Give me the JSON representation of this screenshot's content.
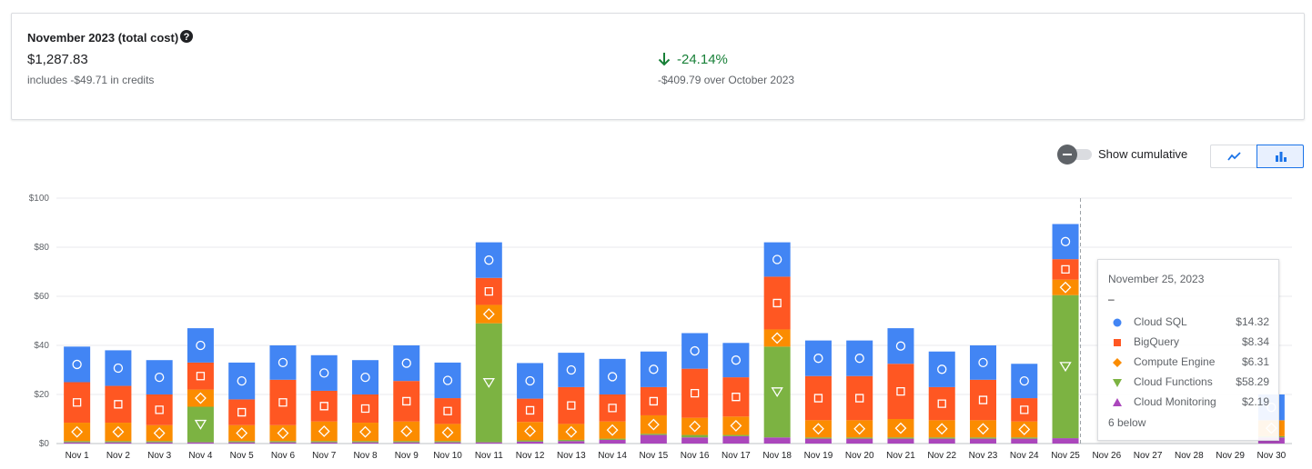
{
  "summary": {
    "title": "November 2023 (total cost)",
    "total": "$1,287.83",
    "credits": "includes -$49.71 in credits",
    "change_pct": "-24.14%",
    "change_amount": "-$409.79 over October 2023"
  },
  "controls": {
    "cumulative_label": "Show cumulative",
    "cumulative_on": false,
    "selected_view": "bar"
  },
  "colors": {
    "Cloud SQL": "#4285f4",
    "BigQuery": "#ff5722",
    "Compute Engine": "#fb8c00",
    "Cloud Functions": "#7cb342",
    "Cloud Monitoring": "#ab47bc",
    "positive_change": "#188038"
  },
  "chart_data": {
    "type": "bar",
    "stacked": true,
    "categories": [
      "Nov 1",
      "Nov 2",
      "Nov 3",
      "Nov 4",
      "Nov 5",
      "Nov 6",
      "Nov 7",
      "Nov 8",
      "Nov 9",
      "Nov 10",
      "Nov 11",
      "Nov 12",
      "Nov 13",
      "Nov 14",
      "Nov 15",
      "Nov 16",
      "Nov 17",
      "Nov 18",
      "Nov 19",
      "Nov 20",
      "Nov 21",
      "Nov 22",
      "Nov 23",
      "Nov 24",
      "Nov 25",
      "Nov 26",
      "Nov 27",
      "Nov 28",
      "Nov 29",
      "Nov 30"
    ],
    "y_ticks": [
      "$0",
      "$20",
      "$40",
      "$60",
      "$80",
      "$100"
    ],
    "ylim": [
      0,
      100
    ],
    "grid": true,
    "series": [
      {
        "name": "Cloud Monitoring",
        "marker": "triangle-up",
        "values": [
          0.5,
          0.5,
          0.5,
          0.5,
          0.5,
          0.5,
          0.5,
          0.5,
          0.5,
          0.5,
          0.5,
          0.8,
          1.0,
          1.5,
          3.5,
          2.5,
          3.0,
          2.5,
          2.0,
          2.0,
          2.0,
          2.0,
          2.0,
          2.0,
          2.19,
          0,
          0,
          0,
          0,
          2.5
        ]
      },
      {
        "name": "Cloud Functions",
        "marker": "triangle-down",
        "values": [
          0.5,
          0.5,
          0.5,
          14.5,
          0.5,
          0.5,
          0.5,
          0.5,
          0.5,
          0.5,
          48.5,
          0.5,
          0.5,
          0.5,
          0.5,
          1.0,
          0.5,
          37.0,
          0.5,
          0.5,
          0.5,
          0.5,
          0.5,
          0.5,
          58.29,
          0,
          0,
          0,
          0,
          0.5
        ]
      },
      {
        "name": "Compute Engine",
        "marker": "diamond",
        "values": [
          7.5,
          7.5,
          6.5,
          7.0,
          6.5,
          6.5,
          8.0,
          7.5,
          8.0,
          7.0,
          7.5,
          7.5,
          6.5,
          7.0,
          7.5,
          7.0,
          7.5,
          7.0,
          7.0,
          7.0,
          7.5,
          7.0,
          7.0,
          6.5,
          6.31,
          0,
          0,
          0,
          0,
          6.5
        ]
      },
      {
        "name": "BigQuery",
        "marker": "square",
        "values": [
          16.5,
          15.0,
          12.5,
          11.0,
          10.5,
          18.5,
          12.5,
          11.5,
          16.5,
          10.5,
          11.0,
          9.5,
          15.0,
          11.0,
          11.5,
          20.0,
          16.0,
          21.5,
          18.0,
          18.0,
          22.5,
          13.5,
          16.5,
          9.5,
          8.34,
          0,
          0,
          0,
          0,
          0
        ]
      },
      {
        "name": "Cloud SQL",
        "marker": "circle",
        "values": [
          14.5,
          14.5,
          14.0,
          14.0,
          15.0,
          14.0,
          14.5,
          14.0,
          14.5,
          14.5,
          14.5,
          14.5,
          14.0,
          14.5,
          14.5,
          14.5,
          14.0,
          14.0,
          14.5,
          14.5,
          14.5,
          14.5,
          14.0,
          14.0,
          14.32,
          0,
          0,
          0,
          0,
          10.5
        ]
      }
    ],
    "tooltip": {
      "date": "November 25, 2023",
      "dash": "–",
      "rows": [
        {
          "name": "Cloud SQL",
          "value": "$14.32"
        },
        {
          "name": "BigQuery",
          "value": "$8.34"
        },
        {
          "name": "Compute Engine",
          "value": "$6.31"
        },
        {
          "name": "Cloud Functions",
          "value": "$58.29"
        },
        {
          "name": "Cloud Monitoring",
          "value": "$2.19"
        }
      ],
      "more": "6 below"
    }
  }
}
